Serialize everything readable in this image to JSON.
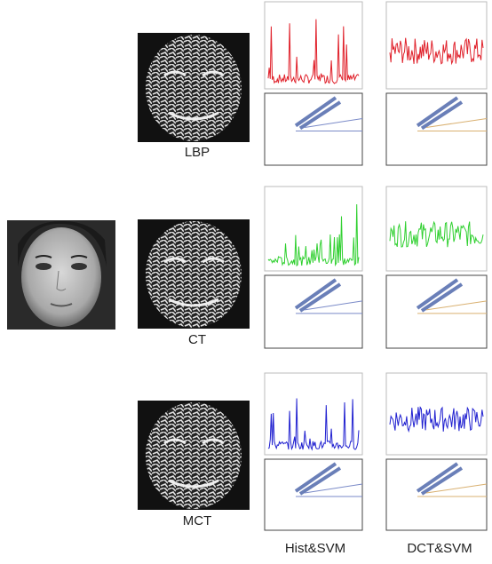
{
  "methods": [
    {
      "label": "LBP",
      "color": "#e0202a"
    },
    {
      "label": "CT",
      "color": "#30d030"
    },
    {
      "label": "MCT",
      "color": "#2020d0"
    }
  ],
  "columns": [
    {
      "label": "Hist&SVM"
    },
    {
      "label": "DCT&SVM"
    }
  ]
}
